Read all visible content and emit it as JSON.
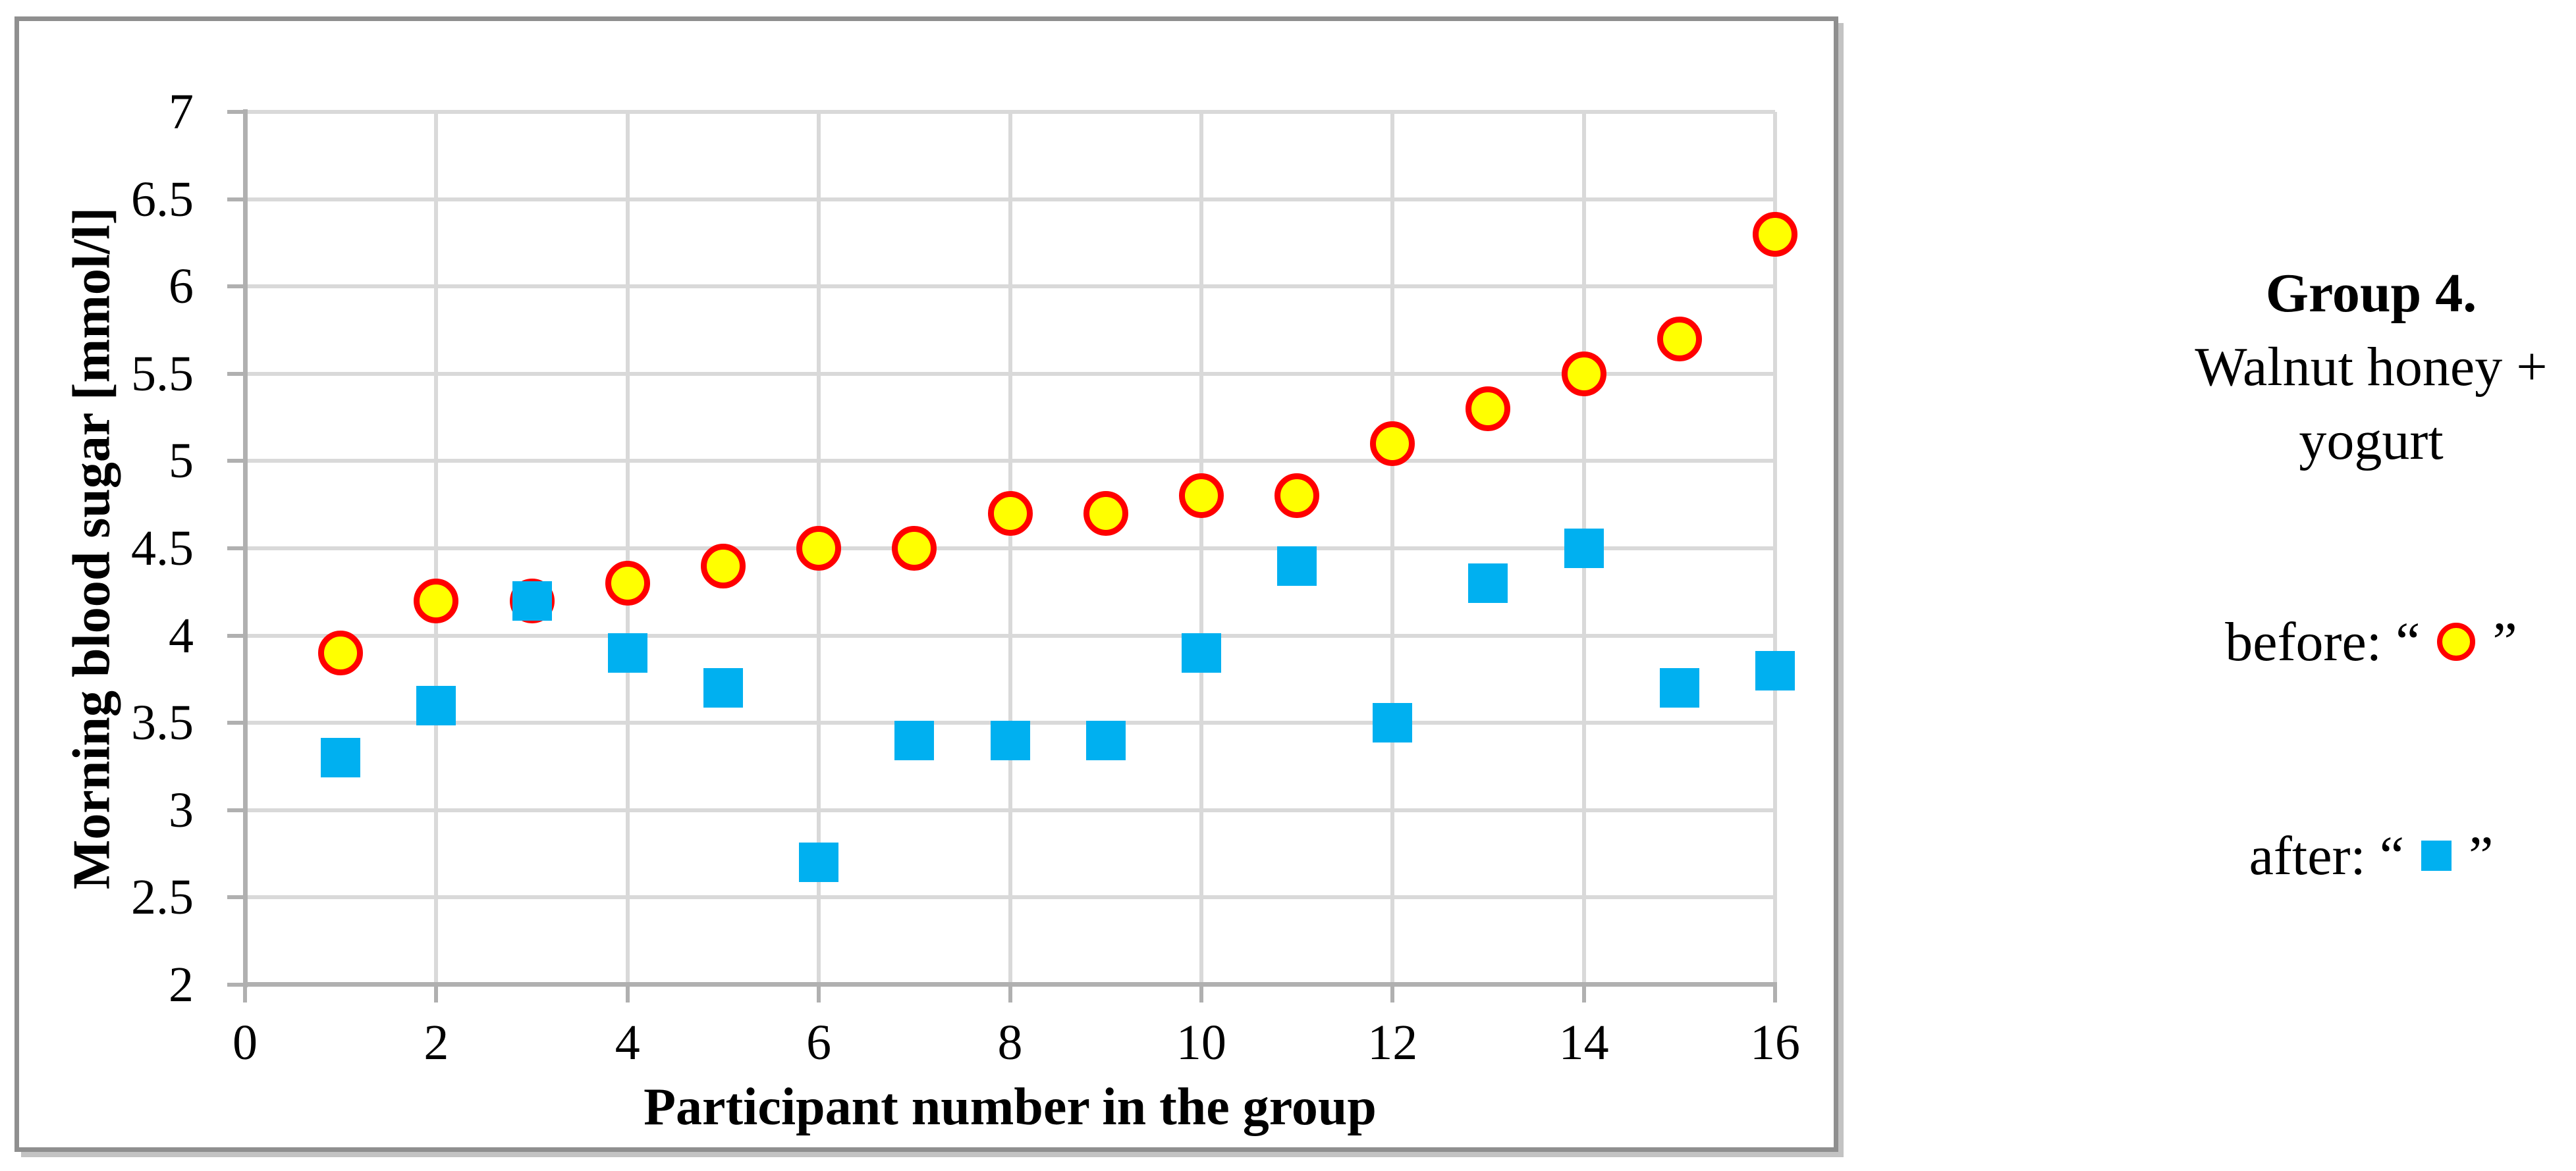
{
  "chart_data": {
    "type": "scatter",
    "title": "",
    "xlabel": "Participant number in the group",
    "ylabel": "Morning blood sugar [mmol/l]",
    "xlim": [
      0,
      16
    ],
    "ylim": [
      2,
      7
    ],
    "grid": true,
    "x_ticks": [
      0,
      2,
      4,
      6,
      8,
      10,
      12,
      14,
      16
    ],
    "x_tick_labels": [
      "0",
      "2",
      "4",
      "6",
      "8",
      "10",
      "12",
      "14",
      "16"
    ],
    "y_ticks": [
      2,
      2.5,
      3,
      3.5,
      4,
      4.5,
      5,
      5.5,
      6,
      6.5,
      7
    ],
    "y_tick_labels": [
      "2",
      "2.5",
      "3",
      "3.5",
      "4",
      "4.5",
      "5",
      "5.5",
      "6",
      "6.5",
      "7"
    ],
    "x": [
      1,
      2,
      3,
      4,
      5,
      6,
      7,
      8,
      9,
      10,
      11,
      12,
      13,
      14,
      15,
      16
    ],
    "series": [
      {
        "name": "before",
        "marker": "circle",
        "fill": "#FFFF00",
        "stroke": "#FF0000",
        "values": [
          3.9,
          4.2,
          4.2,
          4.3,
          4.4,
          4.5,
          4.5,
          4.7,
          4.7,
          4.8,
          4.8,
          5.1,
          5.3,
          5.5,
          5.7,
          6.3
        ]
      },
      {
        "name": "after",
        "marker": "square",
        "fill": "#00B0F0",
        "stroke": "#00B0F0",
        "values": [
          3.3,
          3.6,
          4.2,
          3.9,
          3.7,
          2.7,
          3.4,
          3.4,
          3.4,
          3.9,
          4.4,
          3.5,
          4.3,
          4.5,
          3.7,
          3.8
        ]
      }
    ],
    "legend_position": "right-outside"
  },
  "side_panel": {
    "group_title": "Group 4.",
    "group_line2": "Walnut honey +",
    "group_line3": "yogurt",
    "before_prefix": "before: “",
    "after_prefix": "after: “",
    "quote_close": "”"
  },
  "colors": {
    "before_fill": "#FFFF00",
    "before_stroke": "#FF0000",
    "after_fill": "#00B0F0",
    "gridline": "#D9D9D9",
    "axis": "#B0B0B0",
    "chart_border": "#8F8F8F",
    "text": "#000000"
  }
}
